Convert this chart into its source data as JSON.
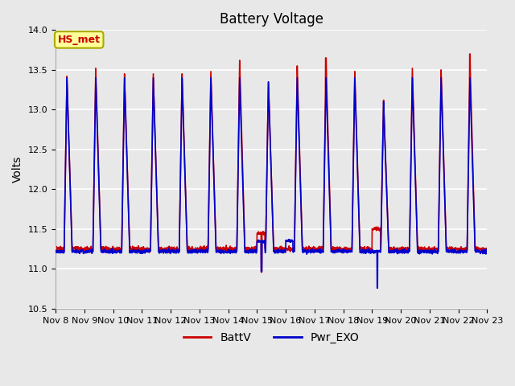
{
  "title": "Battery Voltage",
  "ylabel": "Volts",
  "xlabel": "",
  "ylim": [
    10.5,
    14.0
  ],
  "fig_bg_color": "#e8e8e8",
  "plot_bg_color": "#e8e8e8",
  "grid_color": "white",
  "red_color": "#cc0000",
  "blue_color": "#0000cc",
  "legend_labels": [
    "BattV",
    "Pwr_EXO"
  ],
  "annotation_text": "HS_met",
  "annotation_bg": "#ffff99",
  "annotation_border": "#aaaa00",
  "annotation_text_color": "#cc0000",
  "x_tick_labels": [
    "Nov 8",
    "Nov 9",
    "Nov 10",
    "Nov 11",
    "Nov 12",
    "Nov 13",
    "Nov 14",
    "Nov 15",
    "Nov 16",
    "Nov 17",
    "Nov 18",
    "Nov 19",
    "Nov 20",
    "Nov 21",
    "Nov 22",
    "Nov 23"
  ],
  "yticks": [
    10.5,
    11.0,
    11.5,
    12.0,
    12.5,
    13.0,
    13.5,
    14.0
  ],
  "n_days": 15,
  "pts_per_day": 144
}
